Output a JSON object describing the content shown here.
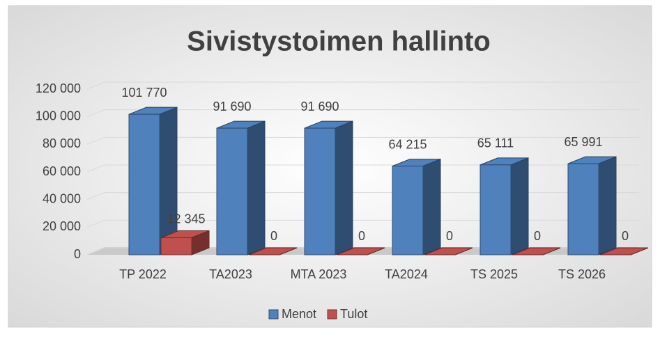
{
  "chart_data": {
    "type": "bar3d",
    "title": "Sivistystoimen hallinto",
    "categories": [
      "TP 2022",
      "TA2023",
      "MTA 2023",
      "TA2024",
      "TS 2025",
      "TS 2026"
    ],
    "series": [
      {
        "name": "Menot",
        "color": "#4f81bd",
        "values": [
          101770,
          91690,
          91690,
          64215,
          65111,
          65991
        ],
        "value_labels": [
          "101 770",
          "91 690",
          "91 690",
          "64 215",
          "65 111",
          "65 991"
        ]
      },
      {
        "name": "Tulot",
        "color": "#c0504d",
        "values": [
          12345,
          0,
          0,
          0,
          0,
          0
        ],
        "value_labels": [
          "12 345",
          "0",
          "0",
          "0",
          "0",
          "0"
        ]
      }
    ],
    "ylim": [
      0,
      120000
    ],
    "yticks": [
      0,
      {
        "value": 20000,
        "label": "20 000"
      },
      {
        "value": 40000,
        "label": "40 000"
      },
      {
        "value": 60000,
        "label": "60 000"
      },
      {
        "value": 80000,
        "label": "80 000"
      },
      {
        "value": 100000,
        "label": "100 000"
      },
      {
        "value": 120000,
        "label": "120 000"
      }
    ],
    "grid": true,
    "legend": "bottom"
  }
}
